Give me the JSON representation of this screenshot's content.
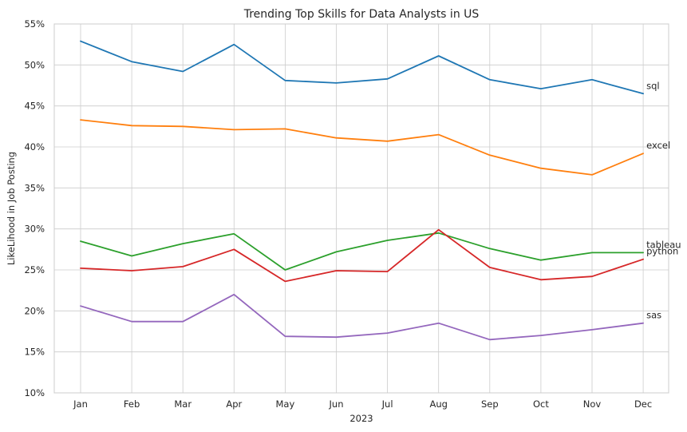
{
  "chart_data": {
    "type": "line",
    "title": "Trending Top Skills for Data Analysts in US",
    "xlabel": "2023",
    "ylabel": "LikeLihood in Job Posting",
    "categories": [
      "Jan",
      "Feb",
      "Mar",
      "Apr",
      "May",
      "Jun",
      "Jul",
      "Aug",
      "Sep",
      "Oct",
      "Nov",
      "Dec"
    ],
    "ylim": [
      10,
      55
    ],
    "yticks": [
      10,
      15,
      20,
      25,
      30,
      35,
      40,
      45,
      50,
      55
    ],
    "ytick_format": "percent",
    "grid": true,
    "legend": "none (series labels at line ends)",
    "series": [
      {
        "name": "sql",
        "color": "#1f77b4",
        "values": [
          52.9,
          50.4,
          49.2,
          52.5,
          48.1,
          47.8,
          48.3,
          51.1,
          48.2,
          47.1,
          48.2,
          46.5
        ]
      },
      {
        "name": "excel",
        "color": "#ff7f0e",
        "values": [
          43.3,
          42.6,
          42.5,
          42.1,
          42.2,
          41.1,
          40.7,
          41.5,
          39.0,
          37.4,
          36.6,
          39.2
        ]
      },
      {
        "name": "tableau",
        "color": "#2ca02c",
        "values": [
          28.5,
          26.7,
          28.2,
          29.4,
          25.0,
          27.2,
          28.6,
          29.5,
          27.6,
          26.2,
          27.1,
          27.1
        ]
      },
      {
        "name": "python",
        "color": "#d62728",
        "values": [
          25.2,
          24.9,
          25.4,
          27.5,
          23.6,
          24.9,
          24.8,
          29.9,
          25.3,
          23.8,
          24.2,
          26.3
        ]
      },
      {
        "name": "sas",
        "color": "#9467bd",
        "values": [
          20.6,
          18.7,
          18.7,
          22.0,
          16.9,
          16.8,
          17.3,
          18.5,
          16.5,
          17.0,
          17.7,
          18.5
        ]
      }
    ]
  }
}
